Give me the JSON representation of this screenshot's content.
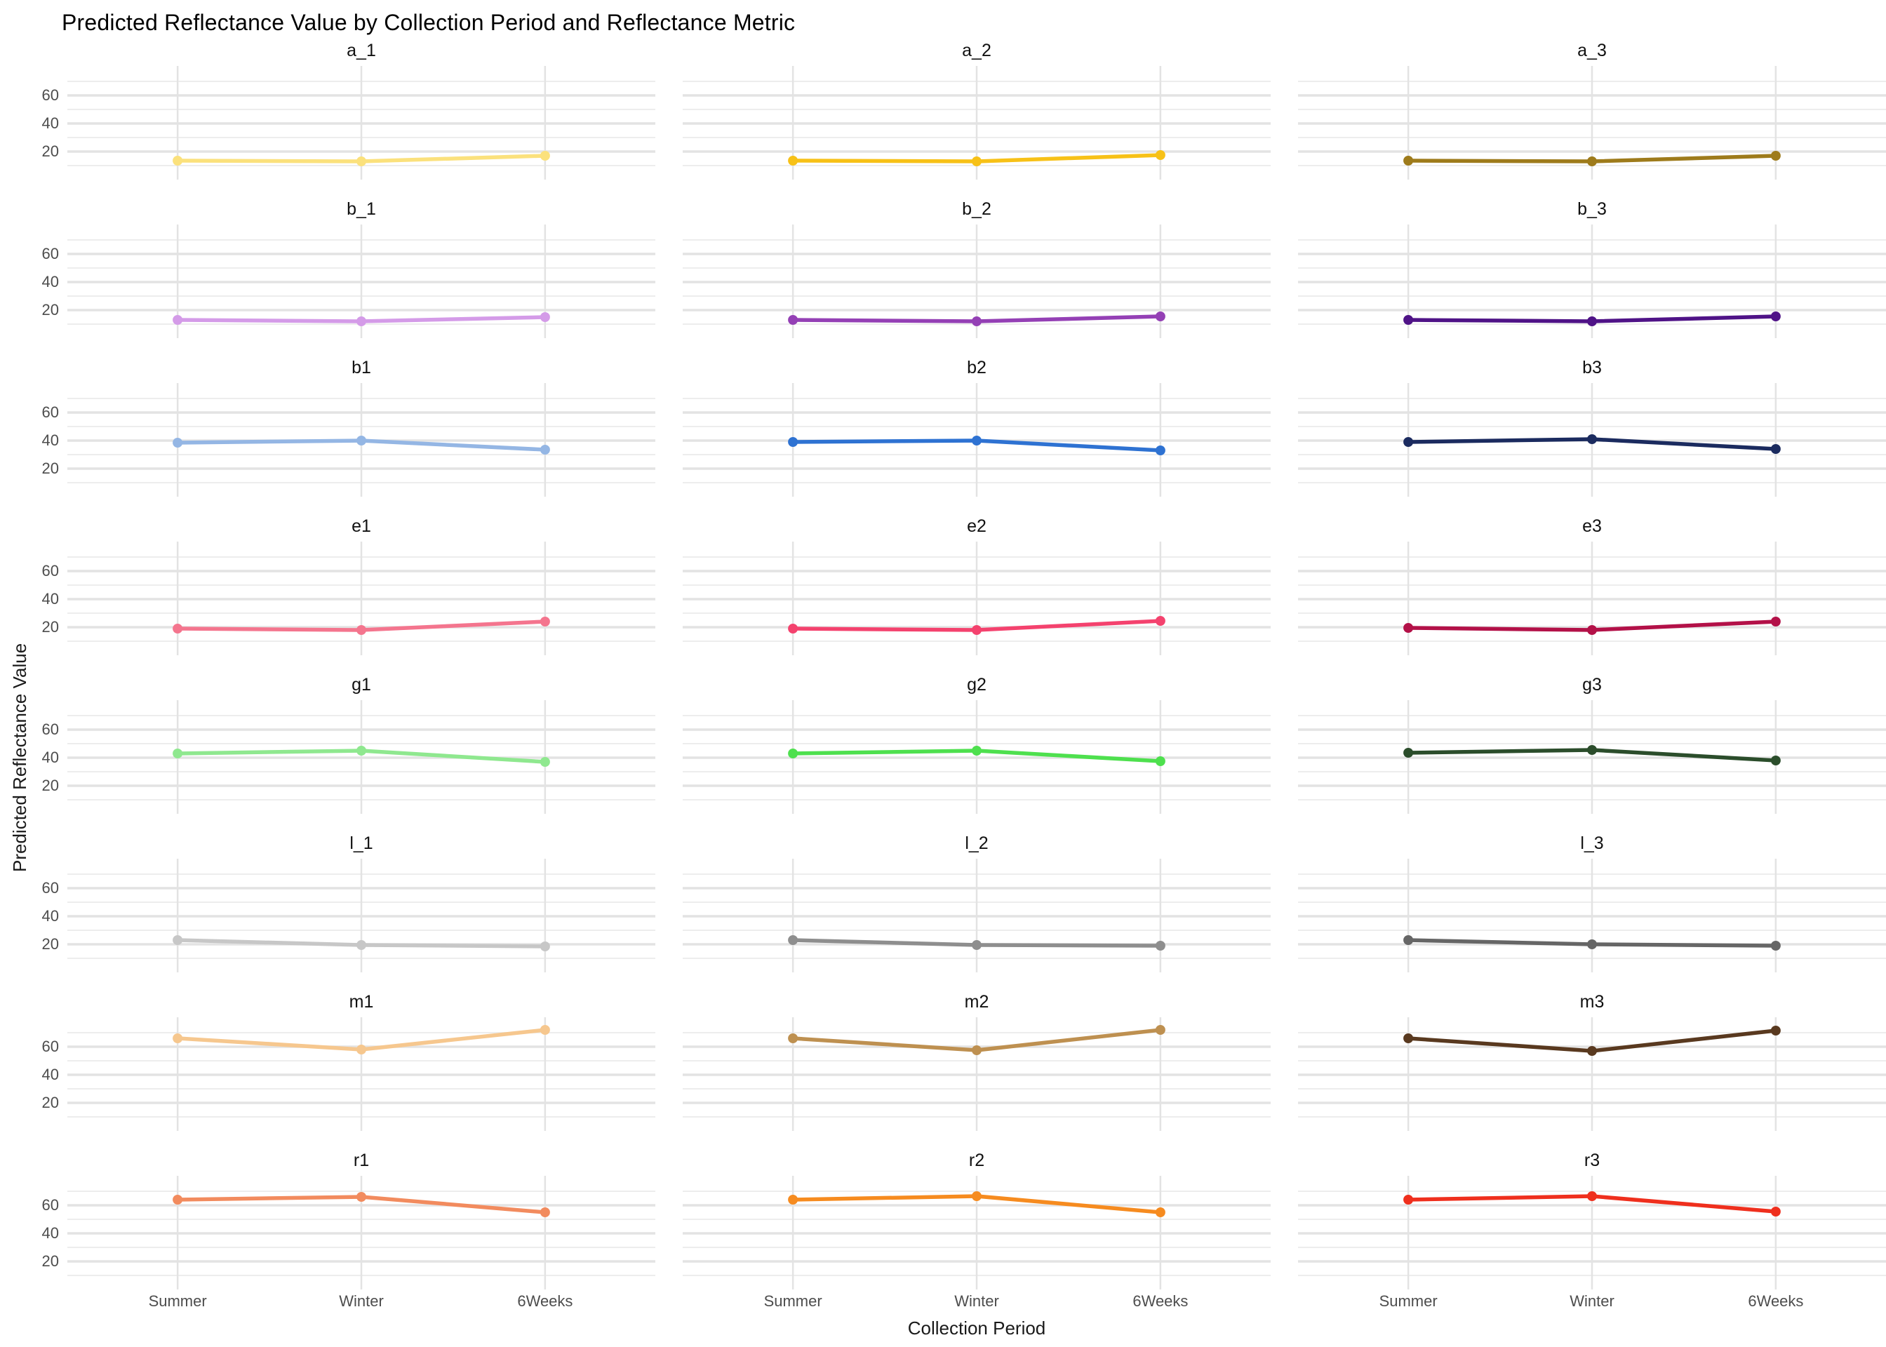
{
  "title": "Predicted Reflectance Value by Collection Period and Reflectance Metric",
  "x_axis": {
    "label": "Collection Period",
    "categories": [
      "Summer",
      "Winter",
      "6Weeks"
    ]
  },
  "y_axis": {
    "label": "Predicted Reflectance Value",
    "ticks": [
      "20",
      "40",
      "60"
    ]
  },
  "colors": {
    "background": "#ffffff",
    "major_grid": "#e3e3e3",
    "minor_grid": "#ededed",
    "vertical_grid": "#e3e3e3",
    "tick_text": "#4d4d4d",
    "facet_title_text": "#111111"
  },
  "chart_data": {
    "type": "line",
    "categories": [
      "Summer",
      "Winter",
      "6Weeks"
    ],
    "xlabel": "Collection Period",
    "ylabel": "Predicted Reflectance Value",
    "title": "Predicted Reflectance Value by Collection Period and Reflectance Metric",
    "ylim": [
      0,
      81
    ],
    "y_major_gridlines": [
      20,
      40,
      60
    ],
    "y_minor_gridlines": [
      10,
      30,
      50,
      70
    ],
    "grid": true,
    "legend": false,
    "facet_layout": {
      "rows": 8,
      "cols": 3
    },
    "facets": [
      {
        "name": "a_1",
        "color": "#FBE17C",
        "values": [
          13.5,
          13,
          17
        ]
      },
      {
        "name": "a_2",
        "color": "#F7C117",
        "values": [
          13.5,
          13,
          17.5
        ]
      },
      {
        "name": "a_3",
        "color": "#9E7B1B",
        "values": [
          13.5,
          13,
          17
        ]
      },
      {
        "name": "b_1",
        "color": "#D49BE8",
        "values": [
          13,
          12,
          15
        ]
      },
      {
        "name": "b_2",
        "color": "#9440B5",
        "values": [
          13,
          12,
          15.5
        ]
      },
      {
        "name": "b_3",
        "color": "#4F1387",
        "values": [
          13,
          12,
          15.5
        ]
      },
      {
        "name": "b1",
        "color": "#94B6E4",
        "values": [
          38.5,
          40,
          33.5
        ]
      },
      {
        "name": "b2",
        "color": "#2E72D2",
        "values": [
          39,
          40,
          33
        ]
      },
      {
        "name": "b3",
        "color": "#1B2B5F",
        "values": [
          39,
          41,
          34
        ]
      },
      {
        "name": "e1",
        "color": "#F4758E",
        "values": [
          19,
          18,
          24
        ]
      },
      {
        "name": "e2",
        "color": "#F4426E",
        "values": [
          19,
          18,
          24.5
        ]
      },
      {
        "name": "e3",
        "color": "#B31148",
        "values": [
          19.5,
          18,
          24
        ]
      },
      {
        "name": "g1",
        "color": "#8FE88F",
        "values": [
          43,
          45,
          37
        ]
      },
      {
        "name": "g2",
        "color": "#4EE04E",
        "values": [
          43,
          45,
          37.5
        ]
      },
      {
        "name": "g3",
        "color": "#2B4D2B",
        "values": [
          43.5,
          45.5,
          38
        ]
      },
      {
        "name": "l_1",
        "color": "#C7C7C7",
        "values": [
          23,
          19.5,
          18.5
        ]
      },
      {
        "name": "l_2",
        "color": "#8E8E8E",
        "values": [
          23,
          19.5,
          19
        ]
      },
      {
        "name": "l_3",
        "color": "#666666",
        "values": [
          23,
          20,
          19
        ]
      },
      {
        "name": "m1",
        "color": "#F6C78E",
        "values": [
          66,
          58,
          72
        ]
      },
      {
        "name": "m2",
        "color": "#BE9050",
        "values": [
          66,
          57.5,
          72
        ]
      },
      {
        "name": "m3",
        "color": "#59391F",
        "values": [
          66,
          57,
          71.5
        ]
      },
      {
        "name": "r1",
        "color": "#F28B5E",
        "values": [
          64,
          66,
          55
        ]
      },
      {
        "name": "r2",
        "color": "#F68B1F",
        "values": [
          64,
          66.5,
          55
        ]
      },
      {
        "name": "r3",
        "color": "#EF2F1D",
        "values": [
          64,
          66.5,
          55.5
        ]
      }
    ]
  }
}
